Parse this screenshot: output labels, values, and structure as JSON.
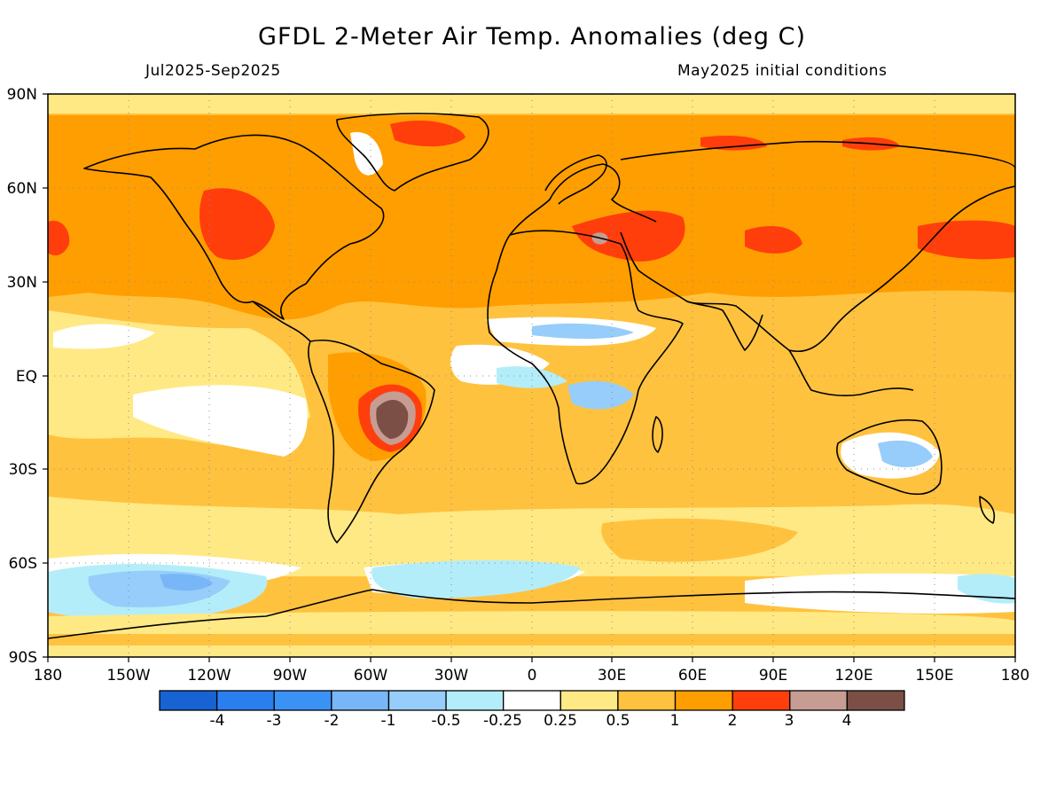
{
  "title": "GFDL 2-Meter Air Temp. Anomalies (deg C)",
  "period": "Jul2025-Sep2025",
  "init": "May2025 initial conditions",
  "lat_labels": [
    "90N",
    "60N",
    "30N",
    "EQ",
    "30S",
    "60S",
    "90S"
  ],
  "lon_labels": [
    "180",
    "150W",
    "120W",
    "90W",
    "60W",
    "30W",
    "0",
    "30E",
    "60E",
    "90E",
    "120E",
    "150E",
    "180"
  ],
  "colorbar": {
    "colors": [
      "#1763d3",
      "#2a7ff0",
      "#3b92f5",
      "#78b6f7",
      "#96cdfa",
      "#b4edfa",
      "#ffffff",
      "#ffe985",
      "#ffc23f",
      "#ff9e00",
      "#ff3e0c",
      "#c69c93",
      "#7c4f46"
    ],
    "labels": [
      "-4",
      "-3",
      "-2",
      "-1",
      "-0.5",
      "-0.25",
      "0.25",
      "0.5",
      "1",
      "2",
      "3",
      "4"
    ]
  }
}
